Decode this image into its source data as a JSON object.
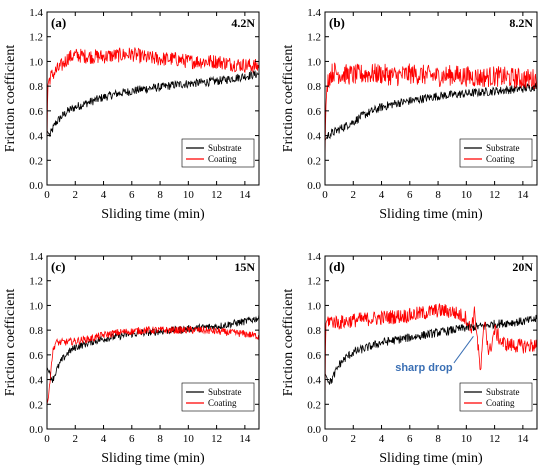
{
  "colors": {
    "substrate": "#000000",
    "coating": "#ff0000",
    "annotation": "#3a6fb4"
  },
  "chart_data": [
    {
      "type": "line",
      "panel": "(a)",
      "load": "4.2N",
      "xlabel": "Sliding time (min)",
      "ylabel": "Friction coefficient",
      "xlim": [
        0,
        15
      ],
      "ylim": [
        0.0,
        1.4
      ],
      "x_ticks": [
        "0",
        "2",
        "4",
        "6",
        "8",
        "10",
        "12",
        "14"
      ],
      "y_ticks": [
        "0.0",
        "0.2",
        "0.4",
        "0.6",
        "0.8",
        "1.0",
        "1.2",
        "1.4"
      ],
      "legend_position": "lower-right",
      "series": [
        {
          "name": "Substrate",
          "color": "#000000",
          "x": [
            0,
            0.1,
            0.2,
            0.4,
            0.6,
            1,
            1.5,
            2,
            2.5,
            3,
            4,
            5,
            6,
            7,
            8,
            9,
            10,
            11,
            12,
            13,
            14,
            15
          ],
          "y": [
            0.44,
            0.42,
            0.4,
            0.45,
            0.5,
            0.55,
            0.6,
            0.63,
            0.65,
            0.67,
            0.71,
            0.74,
            0.76,
            0.78,
            0.79,
            0.81,
            0.82,
            0.83,
            0.84,
            0.86,
            0.88,
            0.9
          ]
        },
        {
          "name": "Coating",
          "color": "#ff0000",
          "x": [
            0,
            0.05,
            0.15,
            0.3,
            0.6,
            1,
            1.5,
            2,
            3,
            4,
            5,
            6,
            7,
            8,
            9,
            10,
            11,
            12,
            13,
            14,
            15
          ],
          "y": [
            0.3,
            0.8,
            0.86,
            0.88,
            0.92,
            0.96,
            1.03,
            1.05,
            1.04,
            1.04,
            1.05,
            1.06,
            1.03,
            1.02,
            1.02,
            1.0,
            1.0,
            1.0,
            0.98,
            0.97,
            0.96
          ]
        }
      ]
    },
    {
      "type": "line",
      "panel": "(b)",
      "load": "8.2N",
      "xlabel": "Sliding time (min)",
      "ylabel": "Friction coefficient",
      "xlim": [
        0,
        15
      ],
      "ylim": [
        0.0,
        1.4
      ],
      "x_ticks": [
        "0",
        "2",
        "4",
        "6",
        "8",
        "10",
        "12",
        "14"
      ],
      "y_ticks": [
        "0.0",
        "0.2",
        "0.4",
        "0.6",
        "0.8",
        "1.0",
        "1.2",
        "1.4"
      ],
      "legend_position": "lower-right",
      "series": [
        {
          "name": "Substrate",
          "color": "#000000",
          "x": [
            0,
            0.2,
            0.5,
            1,
            1.5,
            2,
            2.5,
            3,
            4,
            5,
            6,
            7,
            8,
            9,
            10,
            11,
            12,
            13,
            14,
            15
          ],
          "y": [
            0.36,
            0.4,
            0.42,
            0.45,
            0.48,
            0.51,
            0.55,
            0.58,
            0.63,
            0.66,
            0.68,
            0.7,
            0.72,
            0.73,
            0.74,
            0.75,
            0.76,
            0.77,
            0.78,
            0.8
          ]
        },
        {
          "name": "Coating",
          "color": "#ff0000",
          "x": [
            0,
            0.05,
            0.15,
            0.3,
            0.6,
            1,
            2,
            3,
            4,
            5,
            6,
            7,
            8,
            9,
            10,
            11,
            12,
            13,
            14,
            15
          ],
          "y": [
            0.2,
            0.6,
            0.82,
            0.88,
            0.92,
            0.9,
            0.89,
            0.9,
            0.9,
            0.88,
            0.9,
            0.89,
            0.88,
            0.89,
            0.88,
            0.87,
            0.88,
            0.87,
            0.86,
            0.86
          ]
        }
      ]
    },
    {
      "type": "line",
      "panel": "(c)",
      "load": "15N",
      "xlabel": "Sliding time (min)",
      "ylabel": "Friction coefficient",
      "xlim": [
        0,
        15
      ],
      "ylim": [
        0.0,
        1.4
      ],
      "x_ticks": [
        "0",
        "2",
        "4",
        "6",
        "8",
        "10",
        "12",
        "14"
      ],
      "y_ticks": [
        "0.0",
        "0.2",
        "0.4",
        "0.6",
        "0.8",
        "1.0",
        "1.2",
        "1.4"
      ],
      "legend_position": "lower-right",
      "series": [
        {
          "name": "Substrate",
          "color": "#000000",
          "x": [
            0,
            0.2,
            0.4,
            0.7,
            1,
            1.5,
            2,
            3,
            4,
            5,
            6,
            7,
            8,
            9,
            10,
            11,
            12,
            13,
            14,
            15
          ],
          "y": [
            0.5,
            0.44,
            0.4,
            0.48,
            0.55,
            0.62,
            0.66,
            0.7,
            0.73,
            0.75,
            0.77,
            0.78,
            0.79,
            0.8,
            0.81,
            0.82,
            0.83,
            0.85,
            0.87,
            0.9
          ]
        },
        {
          "name": "Coating",
          "color": "#ff0000",
          "x": [
            0,
            0.1,
            0.25,
            0.4,
            0.6,
            0.8,
            1,
            2,
            3,
            4,
            5,
            6,
            7,
            8,
            9,
            10,
            11,
            12,
            13,
            14,
            15
          ],
          "y": [
            0.2,
            0.25,
            0.45,
            0.62,
            0.7,
            0.7,
            0.7,
            0.71,
            0.73,
            0.76,
            0.78,
            0.79,
            0.8,
            0.8,
            0.8,
            0.8,
            0.8,
            0.79,
            0.78,
            0.77,
            0.75
          ]
        }
      ]
    },
    {
      "type": "line",
      "panel": "(d)",
      "load": "20N",
      "xlabel": "Sliding time (min)",
      "ylabel": "Friction coefficient",
      "xlim": [
        0,
        15
      ],
      "ylim": [
        0.0,
        1.4
      ],
      "x_ticks": [
        "0",
        "2",
        "4",
        "6",
        "8",
        "10",
        "12",
        "14"
      ],
      "y_ticks": [
        "0.0",
        "0.2",
        "0.4",
        "0.6",
        "0.8",
        "1.0",
        "1.2",
        "1.4"
      ],
      "legend_position": "lower-right",
      "annotation": {
        "text": "sharp drop",
        "x": 10.5,
        "y": 0.75
      },
      "series": [
        {
          "name": "Substrate",
          "color": "#000000",
          "x": [
            0,
            0.2,
            0.4,
            0.7,
            1,
            1.5,
            2,
            3,
            4,
            5,
            6,
            7,
            8,
            9,
            10,
            11,
            12,
            13,
            14,
            15
          ],
          "y": [
            0.45,
            0.4,
            0.38,
            0.45,
            0.52,
            0.58,
            0.62,
            0.66,
            0.7,
            0.72,
            0.74,
            0.76,
            0.78,
            0.8,
            0.82,
            0.83,
            0.85,
            0.86,
            0.87,
            0.89
          ]
        },
        {
          "name": "Coating",
          "color": "#ff0000",
          "x": [
            0,
            0.05,
            0.15,
            0.3,
            0.6,
            1,
            2,
            3,
            4,
            5,
            6,
            7,
            8,
            9,
            10,
            10.3,
            10.6,
            11,
            11.3,
            11.6,
            12,
            12.5,
            13,
            14,
            15
          ],
          "y": [
            0.2,
            0.85,
            0.88,
            0.88,
            0.87,
            0.86,
            0.88,
            0.89,
            0.9,
            0.91,
            0.92,
            0.94,
            0.96,
            0.95,
            0.9,
            0.8,
            0.95,
            0.45,
            0.9,
            0.6,
            0.8,
            0.7,
            0.68,
            0.67,
            0.68
          ]
        }
      ]
    }
  ]
}
